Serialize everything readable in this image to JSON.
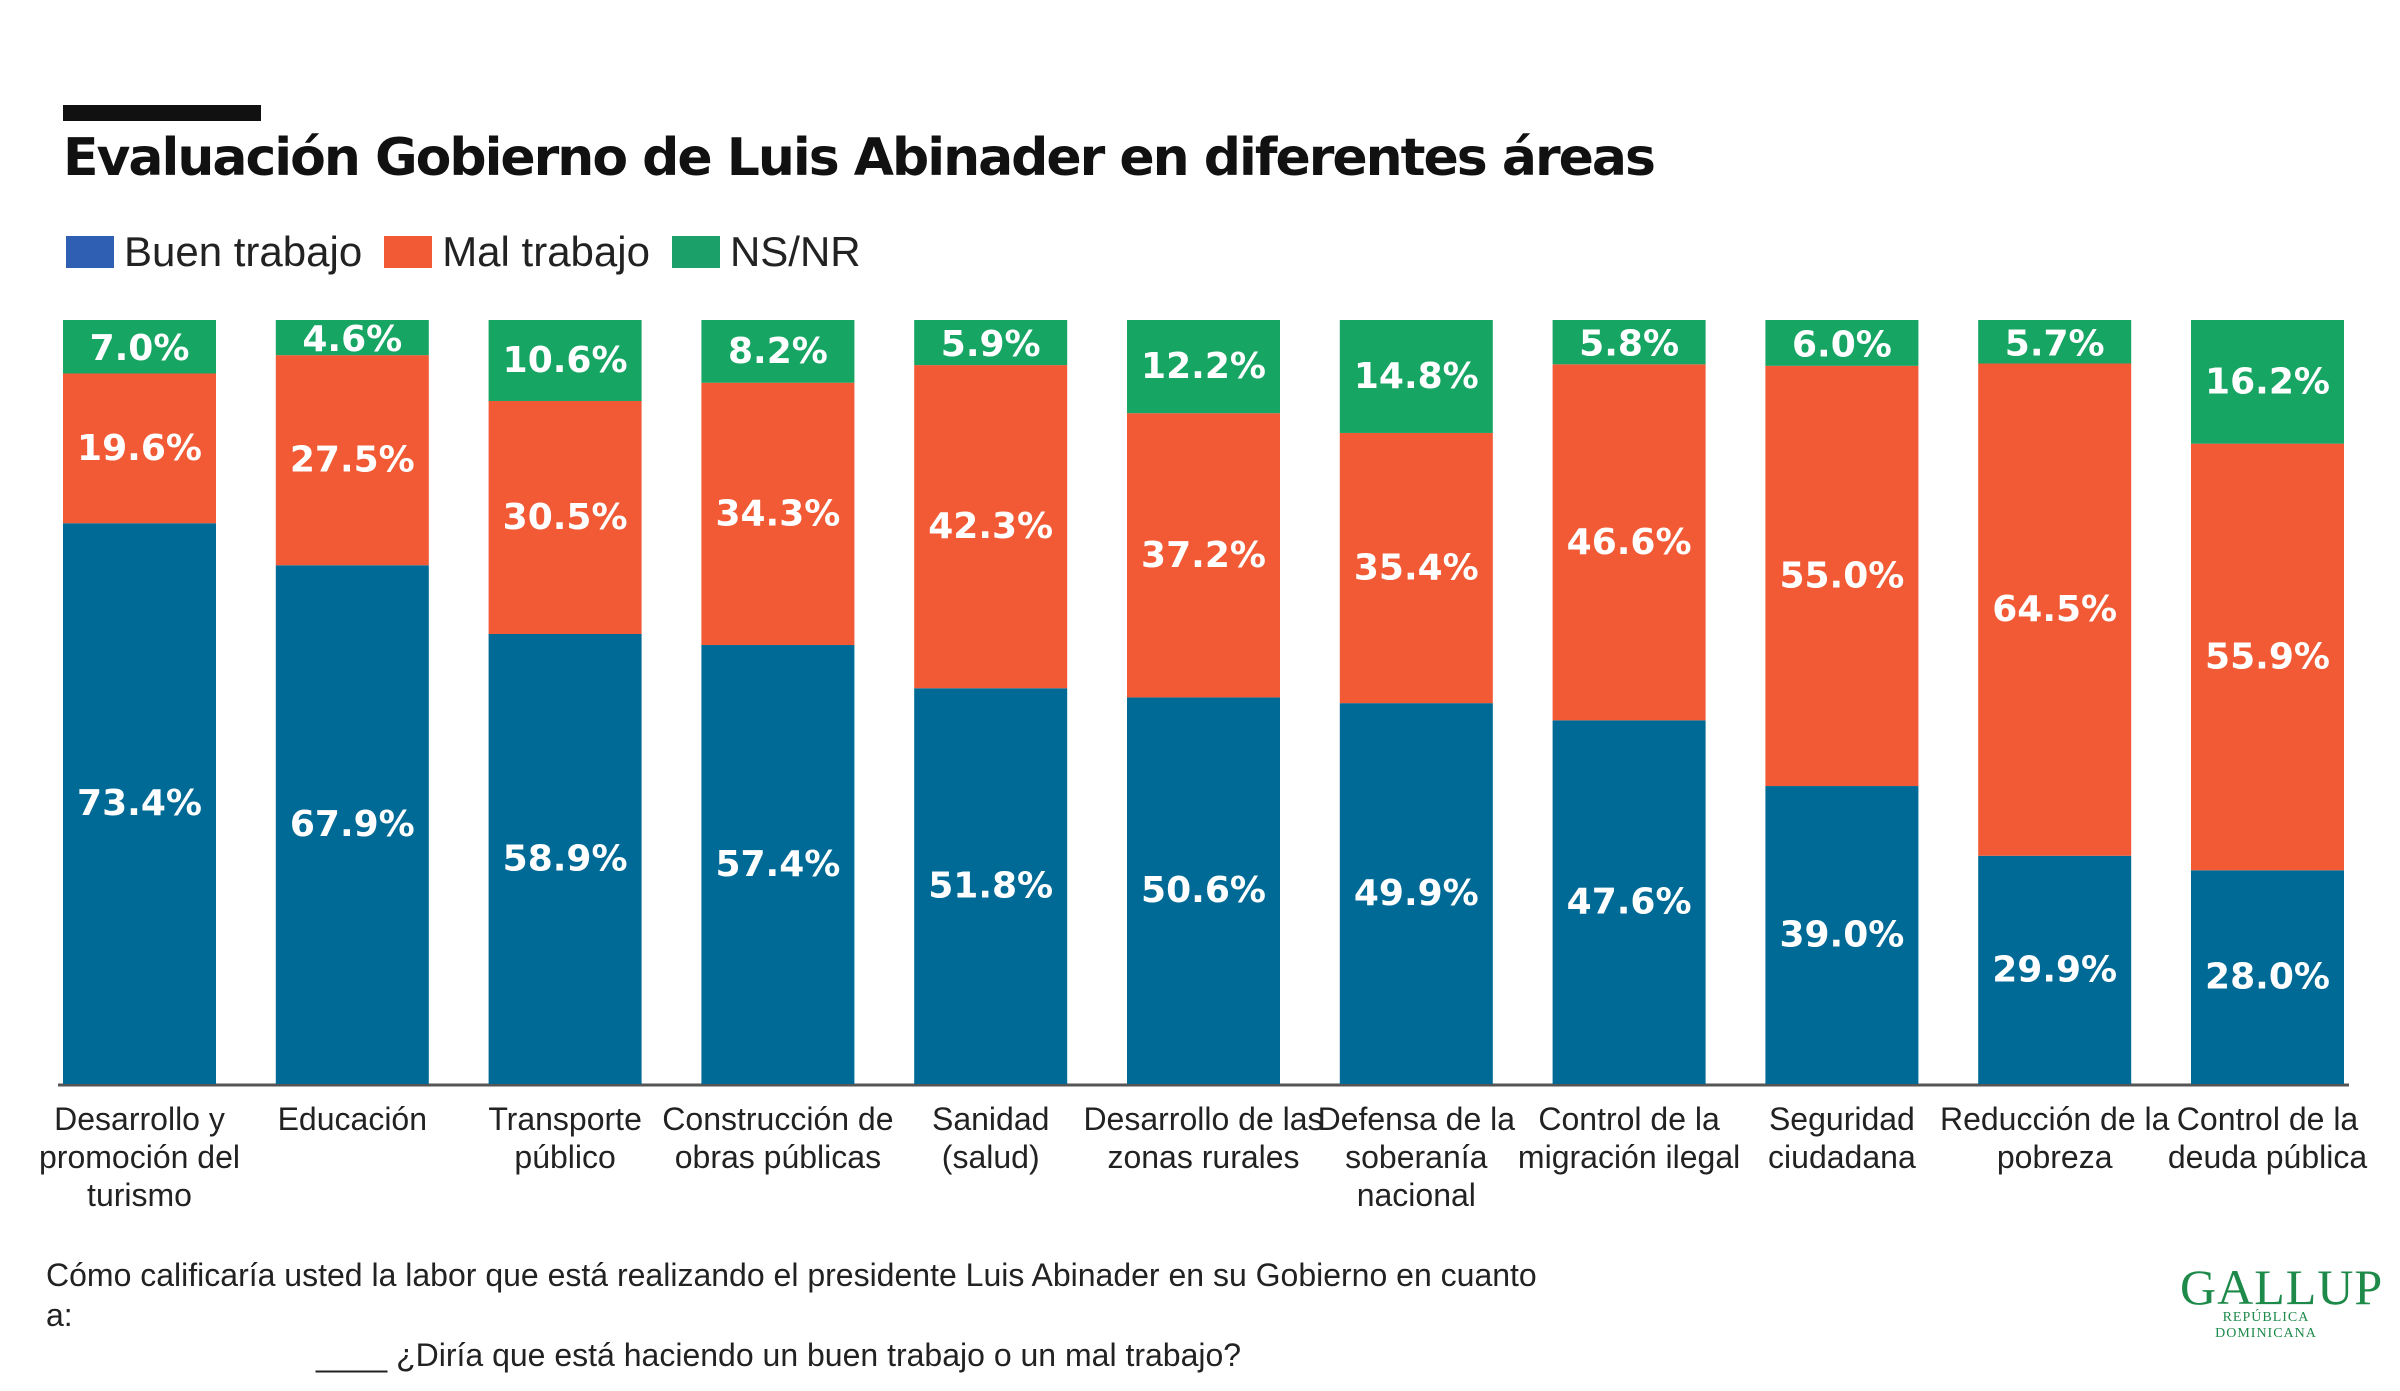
{
  "title": "Evaluación Gobierno de Luis Abinader en diferentes áreas",
  "legend": [
    {
      "label": "Buen trabajo",
      "color": "#2f5fb3"
    },
    {
      "label": "Mal trabajo",
      "color": "#f15a35"
    },
    {
      "label": "NS/NR",
      "color": "#1aa068"
    }
  ],
  "colors": {
    "buen": "#006a96",
    "mal": "#f15a35",
    "nsnr": "#17a564"
  },
  "chart_data": {
    "type": "bar",
    "stacked": true,
    "categories": [
      "Desarrollo y\npromoción del\nturismo",
      "Educación",
      "Transporte\npúblico",
      "Construcción de\nobras públicas",
      "Sanidad\n(salud)",
      "Desarrollo de las\nzonas rurales",
      "Defensa de la\nsoberanía\nnacional",
      "Control de la\nmigración ilegal",
      "Seguridad\nciudadana",
      "Reducción de la\npobreza",
      "Control de la\ndeuda pública"
    ],
    "series": [
      {
        "name": "Buen trabajo",
        "values": [
          73.4,
          67.9,
          58.9,
          57.4,
          51.8,
          50.6,
          49.9,
          47.6,
          39.0,
          29.9,
          28.0
        ]
      },
      {
        "name": "Mal trabajo",
        "values": [
          19.6,
          27.5,
          30.5,
          34.3,
          42.3,
          37.2,
          35.4,
          46.6,
          55.0,
          64.5,
          55.9
        ]
      },
      {
        "name": "NS/NR",
        "values": [
          7.0,
          4.6,
          10.6,
          8.2,
          5.9,
          12.2,
          14.8,
          5.8,
          6.0,
          5.7,
          16.2
        ]
      }
    ],
    "ylim": [
      0,
      100
    ],
    "value_suffix": "%",
    "grid": false,
    "legend_position": "top-left"
  },
  "footer": {
    "question_line1": "Cómo calificaría usted la labor que está realizando el presidente Luis Abinader en su Gobierno en cuanto a:",
    "question_line2": "____ ¿Diría que está haciendo un buen trabajo o un mal trabajo?"
  },
  "logo": {
    "word": "GALLUP",
    "sub": "REPÚBLICA DOMINICANA"
  }
}
